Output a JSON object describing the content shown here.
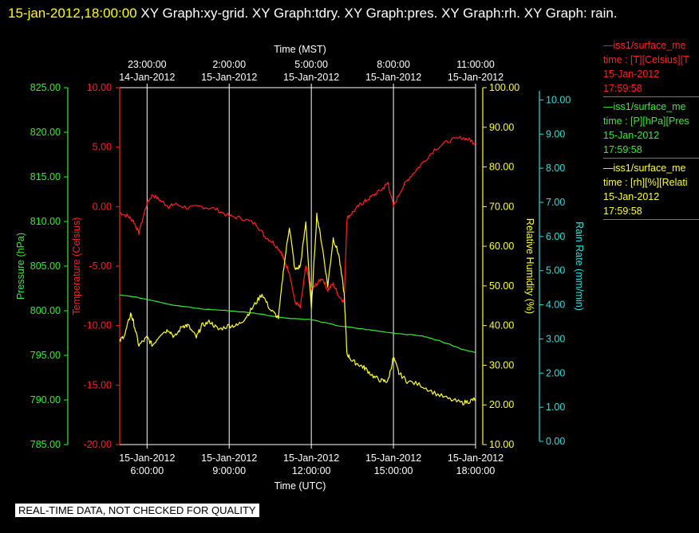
{
  "header": {
    "timestamp": "15-jan-2012,18:00:00",
    "graphs": "XY Graph:xy-grid.  XY Graph:tdry.  XY Graph:pres.  XY Graph:rh.  XY Graph: rain."
  },
  "legend": [
    {
      "line1": "—iss1/surface_me",
      "line2": "time : [T][Celsius][T",
      "line3": "15-Jan-2012",
      "line4": "17:59:58",
      "color": "#ff2020"
    },
    {
      "line1": "—iss1/surface_me",
      "line2": "time : [P][hPa][Pres",
      "line3": "15-Jan-2012",
      "line4": "17:59:58",
      "color": "#33ee33"
    },
    {
      "line1": "—iss1/surface_me",
      "line2": "time : [rh][%][Relati",
      "line3": "15-Jan-2012",
      "line4": "17:59:58",
      "color": "#ffff33"
    }
  ],
  "banner": "REAL-TIME DATA, NOT CHECKED FOR QUALITY",
  "colors": {
    "temperature": "#ff2020",
    "pressure": "#33ee33",
    "humidity": "#ffff33",
    "rain": "#33dddd",
    "grid": "#ffffff"
  },
  "chart_data": {
    "type": "line",
    "x_bottom_label": "Time (UTC)",
    "x_top_label": "Time (MST)",
    "x_range_utc_hours": [
      5.0,
      18.0
    ],
    "x_ticks_bottom": [
      {
        "t": 6,
        "date": "15-Jan-2012",
        "time": "6:00:00"
      },
      {
        "t": 9,
        "date": "15-Jan-2012",
        "time": "9:00:00"
      },
      {
        "t": 12,
        "date": "15-Jan-2012",
        "time": "12:00:00"
      },
      {
        "t": 15,
        "date": "15-Jan-2012",
        "time": "15:00:00"
      },
      {
        "t": 18,
        "date": "15-Jan-2012",
        "time": "18:00:00"
      }
    ],
    "x_ticks_top": [
      {
        "t": 6,
        "time": "23:00:00",
        "date": "14-Jan-2012"
      },
      {
        "t": 9,
        "time": "2:00:00",
        "date": "15-Jan-2012"
      },
      {
        "t": 12,
        "time": "5:00:00",
        "date": "15-Jan-2012"
      },
      {
        "t": 15,
        "time": "8:00:00",
        "date": "15-Jan-2012"
      },
      {
        "t": 18,
        "time": "11:00:00",
        "date": "15-Jan-2012"
      }
    ],
    "axes": {
      "pressure": {
        "label": "Pressure (hPa)",
        "range": [
          785,
          825
        ],
        "ticks": [
          "785.00",
          "790.00",
          "795.00",
          "800.00",
          "805.00",
          "810.00",
          "815.00",
          "820.00",
          "825.00"
        ]
      },
      "temperature": {
        "label": "Temperature (Celsius)",
        "range": [
          -20,
          10
        ],
        "ticks": [
          "-20.00",
          "-15.00",
          "-10.00",
          "-5.00",
          "0.00",
          "5.00",
          "10.00"
        ]
      },
      "humidity": {
        "label": "Relative Humidity (%)",
        "range": [
          10,
          100
        ],
        "ticks": [
          "10.00",
          "20.00",
          "30.00",
          "40.00",
          "50.00",
          "60.00",
          "70.00",
          "80.00",
          "90.00",
          "100.00"
        ]
      },
      "rain": {
        "label": "Rain Rate (mm/min)",
        "range": [
          0,
          10.5
        ],
        "ticks": [
          "0.00",
          "1.00",
          "2.00",
          "3.00",
          "4.00",
          "5.00",
          "6.00",
          "7.00",
          "8.00",
          "9.00",
          "10.00"
        ]
      }
    },
    "series": [
      {
        "key": "temperature",
        "axis": "temperature",
        "x": [
          5.0,
          5.3,
          5.5,
          5.7,
          6.0,
          6.2,
          6.5,
          6.8,
          7.0,
          7.5,
          8.0,
          8.5,
          9.0,
          9.5,
          10.0,
          10.3,
          10.6,
          10.9,
          11.0,
          11.2,
          11.4,
          11.6,
          11.8,
          12.0,
          12.2,
          12.4,
          12.6,
          12.8,
          13.0,
          13.2,
          13.3,
          13.5,
          13.8,
          14.0,
          14.3,
          14.6,
          14.8,
          15.0,
          15.3,
          15.6,
          16.0,
          16.5,
          17.0,
          17.5,
          17.8,
          18.0
        ],
        "y": [
          -0.5,
          -0.8,
          -1.2,
          -2.2,
          0.3,
          1.0,
          0.5,
          0.0,
          0.2,
          -0.1,
          0.0,
          -0.2,
          -0.8,
          -1.0,
          -1.5,
          -2.5,
          -3.0,
          -3.8,
          -4.5,
          -5.5,
          -8.0,
          -8.5,
          -5.0,
          -7.0,
          -6.5,
          -6.0,
          -7.0,
          -6.5,
          -7.5,
          -8.0,
          -1.0,
          -0.5,
          0.2,
          0.5,
          1.0,
          1.5,
          2.0,
          0.0,
          1.5,
          2.5,
          3.5,
          4.8,
          5.5,
          5.8,
          5.6,
          5.3
        ]
      },
      {
        "key": "pressure",
        "axis": "pressure",
        "x": [
          5.0,
          6.0,
          7.0,
          8.0,
          9.0,
          10.0,
          11.0,
          12.0,
          13.0,
          14.0,
          15.0,
          16.0,
          16.5,
          17.0,
          17.5,
          18.0
        ],
        "y": [
          801.8,
          801.3,
          800.6,
          800.2,
          800.0,
          799.7,
          799.2,
          799.0,
          798.3,
          797.9,
          797.5,
          797.2,
          796.8,
          796.3,
          795.7,
          795.3
        ]
      },
      {
        "key": "humidity",
        "axis": "humidity",
        "x": [
          5.0,
          5.2,
          5.4,
          5.5,
          5.7,
          6.0,
          6.2,
          6.5,
          6.8,
          7.0,
          7.3,
          7.5,
          7.8,
          8.0,
          8.3,
          8.6,
          9.0,
          9.3,
          9.6,
          9.9,
          10.2,
          10.5,
          10.8,
          11.0,
          11.2,
          11.4,
          11.6,
          11.8,
          12.0,
          12.2,
          12.4,
          12.6,
          12.8,
          13.0,
          13.2,
          13.3,
          13.5,
          13.8,
          14.0,
          14.3,
          14.6,
          14.8,
          15.0,
          15.2,
          15.5,
          16.0,
          16.5,
          17.0,
          17.5,
          17.8,
          18.0
        ],
        "y": [
          36,
          38,
          43,
          41,
          35,
          37,
          35,
          38,
          39,
          37,
          40,
          40,
          37,
          40,
          41,
          39,
          40,
          40,
          42,
          45,
          48,
          44,
          42,
          55,
          65,
          54,
          55,
          66,
          44,
          68,
          60,
          50,
          62,
          58,
          48,
          33,
          31,
          30,
          29,
          27,
          26,
          26,
          32,
          28,
          26,
          25,
          23,
          21.5,
          20.5,
          21,
          21.5
        ]
      }
    ]
  }
}
